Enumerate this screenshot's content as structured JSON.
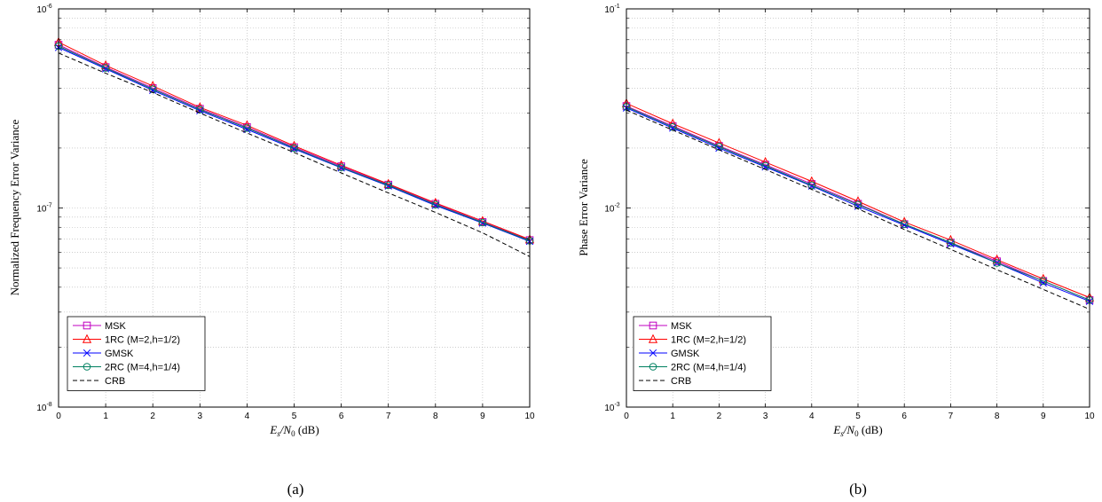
{
  "colors": {
    "MSK": "#c000c0",
    "1RC": "#ff0000",
    "GMSK": "#0000ff",
    "2RC": "#008060",
    "CRB": "#000000",
    "grid": "#b0b0b0"
  },
  "chart_data": [
    {
      "type": "line",
      "caption": "(a)",
      "x_label_main": "E",
      "x_label_sub1": "s",
      "x_label_slash": "/N",
      "x_label_sub2": "0",
      "x_label_unit": " (dB)",
      "ylabel": "Normalized Frequency Error Variance",
      "yscale": "log",
      "xlim": [
        0,
        10
      ],
      "ylim": [
        1e-08,
        1e-06
      ],
      "x_ticks": [
        "0",
        "1",
        "2",
        "3",
        "4",
        "5",
        "6",
        "7",
        "8",
        "9",
        "10"
      ],
      "y_ticks": [
        {
          "base": "10",
          "exp": "-8"
        },
        {
          "base": "10",
          "exp": "-7"
        },
        {
          "base": "10",
          "exp": "-6"
        }
      ],
      "grid": true,
      "legend_position": "bottom-left",
      "x": [
        0,
        1,
        2,
        3,
        4,
        5,
        6,
        7,
        8,
        9,
        10
      ],
      "series": [
        {
          "name": "MSK",
          "marker": "square",
          "color_key": "MSK",
          "values": [
            6.6e-07,
            5.1e-07,
            4e-07,
            3.15e-07,
            2.55e-07,
            2.02e-07,
            1.62e-07,
            1.31e-07,
            1.05e-07,
            8.5e-08,
            6.9e-08
          ]
        },
        {
          "name": "1RC (M=2,h=1/2)",
          "marker": "triangle",
          "color_key": "1RC",
          "values": [
            6.8e-07,
            5.2e-07,
            4.1e-07,
            3.2e-07,
            2.6e-07,
            2.05e-07,
            1.64e-07,
            1.32e-07,
            1.06e-07,
            8.6e-08,
            6.95e-08
          ]
        },
        {
          "name": "GMSK",
          "marker": "x",
          "color_key": "GMSK",
          "values": [
            6.4e-07,
            5e-07,
            3.9e-07,
            3.08e-07,
            2.48e-07,
            1.98e-07,
            1.59e-07,
            1.29e-07,
            1.03e-07,
            8.4e-08,
            6.8e-08
          ]
        },
        {
          "name": "2RC (M=4,h=1/4)",
          "marker": "circle",
          "color_key": "2RC",
          "values": [
            6.5e-07,
            5.05e-07,
            3.95e-07,
            3.12e-07,
            2.52e-07,
            2e-07,
            1.6e-07,
            1.3e-07,
            1.04e-07,
            8.45e-08,
            6.85e-08
          ]
        },
        {
          "name": "CRB",
          "marker": "none",
          "dashed": true,
          "color_key": "CRB",
          "values": [
            6e-07,
            4.75e-07,
            3.8e-07,
            3e-07,
            2.38e-07,
            1.9e-07,
            1.5e-07,
            1.19e-07,
            9.5e-08,
            7.5e-08,
            5.7e-08
          ]
        }
      ]
    },
    {
      "type": "line",
      "caption": "(b)",
      "x_label_main": "E",
      "x_label_sub1": "s",
      "x_label_slash": "/N",
      "x_label_sub2": "0",
      "x_label_unit": " (dB)",
      "ylabel": "Phase Error Variance",
      "yscale": "log",
      "xlim": [
        0,
        10
      ],
      "ylim": [
        0.001,
        0.1
      ],
      "x_ticks": [
        "0",
        "1",
        "2",
        "3",
        "4",
        "5",
        "6",
        "7",
        "8",
        "9",
        "10"
      ],
      "y_ticks": [
        {
          "base": "10",
          "exp": "-3"
        },
        {
          "base": "10",
          "exp": "-2"
        },
        {
          "base": "10",
          "exp": "-1"
        }
      ],
      "grid": true,
      "legend_position": "bottom-left",
      "x": [
        0,
        1,
        2,
        3,
        4,
        5,
        6,
        7,
        8,
        9,
        10
      ],
      "series": [
        {
          "name": "MSK",
          "marker": "square",
          "color_key": "MSK",
          "values": [
            0.0325,
            0.0258,
            0.0205,
            0.0165,
            0.0132,
            0.0105,
            0.0083,
            0.0067,
            0.0054,
            0.0043,
            0.00345
          ]
        },
        {
          "name": "1RC (M=2,h=1/2)",
          "marker": "triangle",
          "color_key": "1RC",
          "values": [
            0.0335,
            0.0265,
            0.0212,
            0.017,
            0.0136,
            0.0108,
            0.0085,
            0.0069,
            0.0055,
            0.0044,
            0.00355
          ]
        },
        {
          "name": "GMSK",
          "marker": "x",
          "color_key": "GMSK",
          "values": [
            0.0318,
            0.0252,
            0.02,
            0.0161,
            0.0129,
            0.0102,
            0.0082,
            0.0066,
            0.0053,
            0.0042,
            0.0034
          ]
        },
        {
          "name": "2RC (M=4,h=1/4)",
          "marker": "circle",
          "color_key": "2RC",
          "values": [
            0.0322,
            0.0255,
            0.0203,
            0.0163,
            0.013,
            0.0104,
            0.0083,
            0.0067,
            0.0053,
            0.0043,
            0.00345
          ]
        },
        {
          "name": "CRB",
          "marker": "none",
          "dashed": true,
          "color_key": "CRB",
          "values": [
            0.031,
            0.0246,
            0.0196,
            0.0156,
            0.0124,
            0.0099,
            0.0078,
            0.0062,
            0.0049,
            0.0039,
            0.0031
          ]
        }
      ]
    }
  ]
}
